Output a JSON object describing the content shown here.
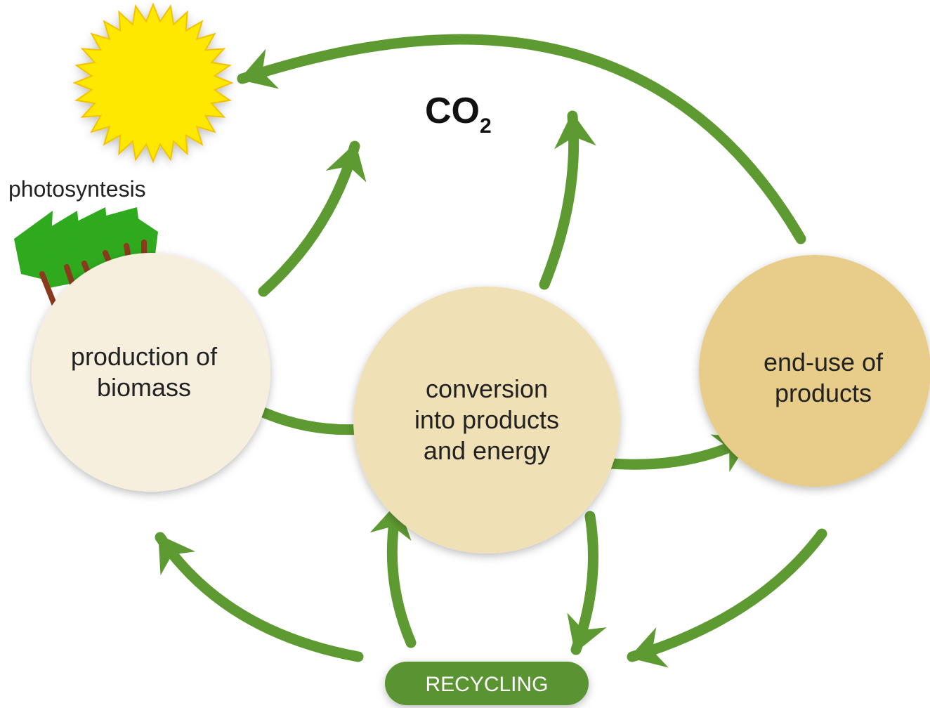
{
  "photosynthesis_label": "photosyntesis",
  "co2": {
    "text": "CO",
    "subscript": "2"
  },
  "nodes": [
    {
      "lines": [
        "production of",
        "biomass"
      ]
    },
    {
      "lines": [
        "conversion",
        "into products",
        "and energy"
      ]
    },
    {
      "lines": [
        "end-use of",
        "products"
      ]
    }
  ],
  "recycling": "RECYCLING"
}
